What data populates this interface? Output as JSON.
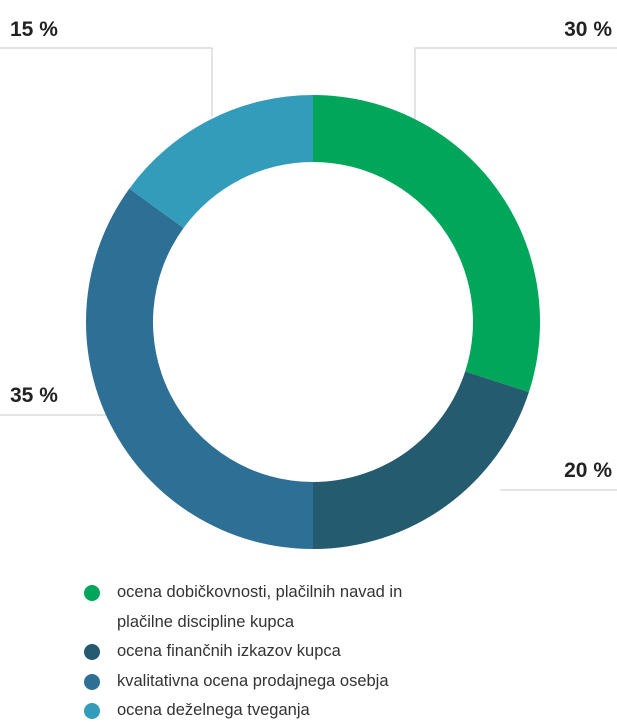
{
  "chart_data": {
    "type": "donut",
    "unit": "%",
    "series": [
      {
        "name": "ocena dobičkovnosti, plačilnih navad in plačilne discipline kupca",
        "value": 30,
        "label": "30 %",
        "color": "#00a65a"
      },
      {
        "name": "ocena finančnih izkazov kupca",
        "value": 20,
        "label": "20 %",
        "color": "#245b6e"
      },
      {
        "name": "kvalitativna ocena prodajnega osebja",
        "value": 35,
        "label": "35 %",
        "color": "#2e6f95"
      },
      {
        "name": "ocena deželnega tveganja",
        "value": 15,
        "label": "15 %",
        "color": "#339cbb"
      }
    ],
    "legend_position": "bottom"
  },
  "legend": {
    "items": [
      {
        "lines": [
          "ocena dobičkovnosti, plačilnih navad in",
          "plačilne discipline kupca"
        ],
        "color": "#00a65a"
      },
      {
        "lines": [
          "ocena finančnih izkazov kupca"
        ],
        "color": "#245b6e"
      },
      {
        "lines": [
          "kvalitativna ocena prodajnega osebja"
        ],
        "color": "#2e6f95"
      },
      {
        "lines": [
          "ocena deželnega tveganja"
        ],
        "color": "#339cbb"
      }
    ]
  }
}
